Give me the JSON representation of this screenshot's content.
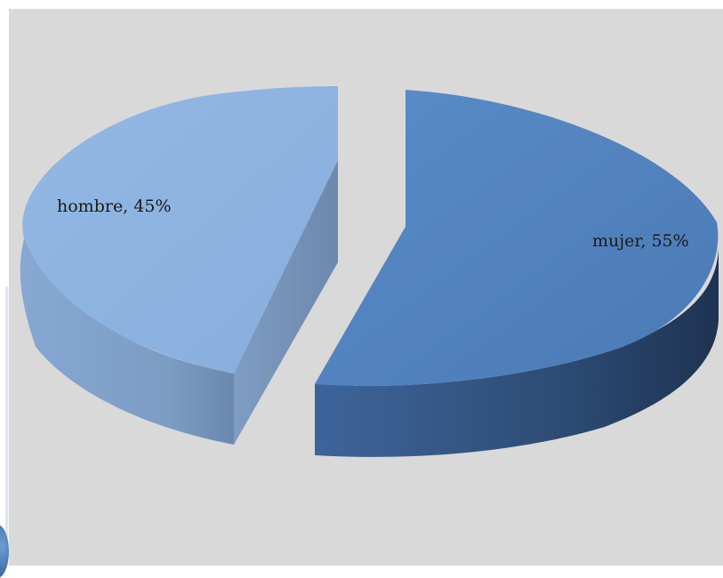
{
  "chart_data": {
    "type": "pie",
    "style": "3d-exploded",
    "title": "",
    "slices": [
      {
        "label": "hombre",
        "value": 45,
        "display": "hombre, 45%",
        "color": "#8db3e2"
      },
      {
        "label": "mujer",
        "value": 55,
        "display": "mujer, 55%",
        "color": "#4f81bd"
      }
    ],
    "background": "#d9d9d9",
    "legend": "none"
  }
}
